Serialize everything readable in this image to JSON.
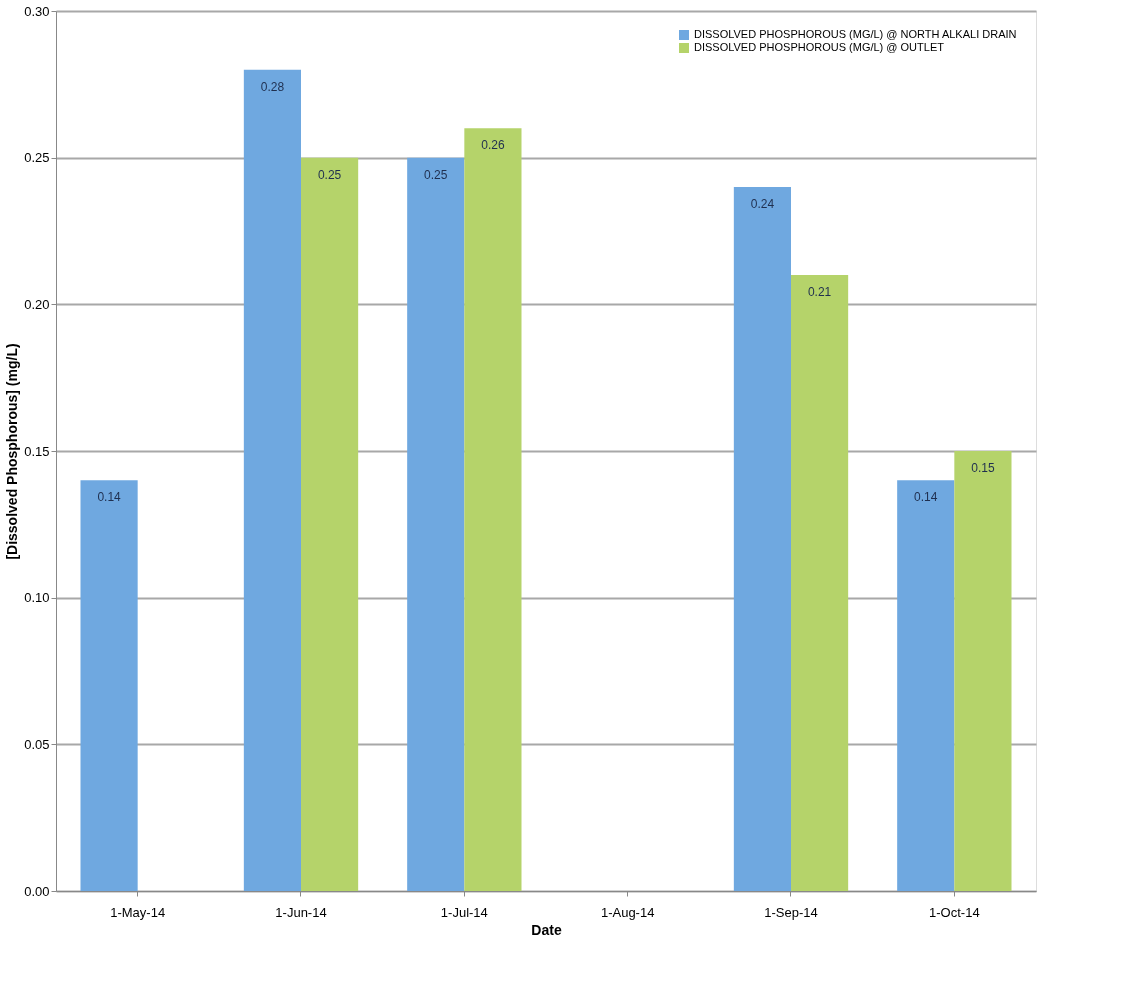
{
  "chart_data": {
    "type": "bar",
    "xlabel": "Date",
    "ylabel": "[Dissolved Phosphorous] (mg/L)",
    "categories": [
      "1-May-14",
      "1-Jun-14",
      "1-Jul-14",
      "1-Aug-14",
      "1-Sep-14",
      "1-Oct-14"
    ],
    "series": [
      {
        "name": "DISSOLVED PHOSPHOROUS (MG/L) @ NORTH ALKALI DRAIN",
        "color": "#6fa8e0",
        "values": [
          0.14,
          0.28,
          0.25,
          null,
          0.24,
          0.14
        ]
      },
      {
        "name": "DISSOLVED PHOSPHOROUS (MG/L) @ OUTLET",
        "color": "#b5d36a",
        "values": [
          null,
          0.25,
          0.26,
          null,
          0.21,
          0.15
        ]
      }
    ],
    "ylim": [
      0,
      0.3
    ],
    "yticks": [
      {
        "value": 0,
        "label": "0.00"
      },
      {
        "value": 0.05,
        "label": "0.05"
      },
      {
        "value": 0.1,
        "label": "0.10"
      },
      {
        "value": 0.15,
        "label": "0.15"
      },
      {
        "value": 0.2,
        "label": "0.20"
      },
      {
        "value": 0.25,
        "label": "0.25"
      },
      {
        "value": 0.3,
        "label": "0.30"
      }
    ],
    "grid": "y",
    "legend": "top right",
    "data_labels": true
  }
}
